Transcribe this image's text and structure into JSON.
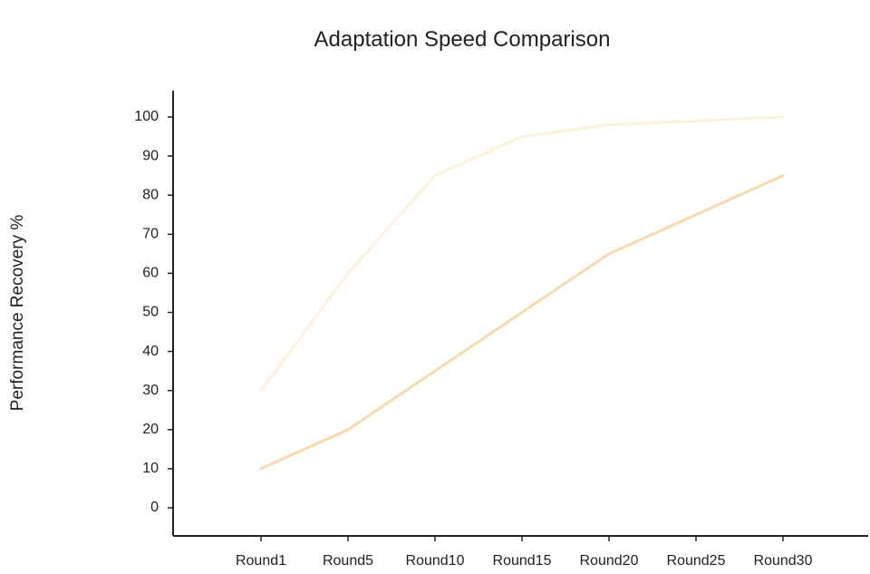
{
  "chart_data": {
    "type": "line",
    "title": "Adaptation Speed Comparison",
    "xlabel": "",
    "ylabel": "Performance Recovery %",
    "categories": [
      "Round1",
      "Round5",
      "Round10",
      "Round15",
      "Round20",
      "Round25",
      "Round30"
    ],
    "ylim": [
      0,
      100
    ],
    "yticks": [
      0,
      10,
      20,
      30,
      40,
      50,
      60,
      70,
      80,
      90,
      100
    ],
    "grid": false,
    "series": [
      {
        "color": "#FEF1DA",
        "values": [
          30,
          60,
          85,
          95,
          98,
          99,
          100
        ]
      },
      {
        "color": "#F9D9AE",
        "values": [
          10,
          20,
          35,
          50,
          65,
          75,
          85
        ]
      }
    ]
  }
}
